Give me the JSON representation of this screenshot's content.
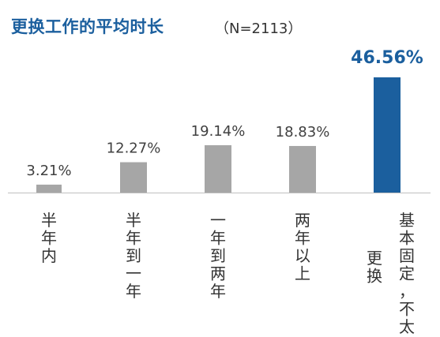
{
  "chart_data": {
    "type": "bar",
    "title": "更换工作的平均时长",
    "subtitle": "（N=2113）",
    "categories": [
      "半年内",
      "半年到一年",
      "一年到两年",
      "两年以上",
      "基本固定，不太更换"
    ],
    "values": [
      3.21,
      12.27,
      19.14,
      18.83,
      46.56
    ],
    "value_labels": [
      "3.21%",
      "12.27%",
      "19.14%",
      "18.83%",
      "46.56%"
    ],
    "ylim": [
      0,
      50
    ],
    "grid": false,
    "legend": "none",
    "colors": {
      "bar": "#a6a6a6",
      "highlight_bar": "#1b5f9e",
      "label": "#404040",
      "highlight_label": "#1b5f9e",
      "title": "#1b5f9e",
      "baseline": "#bfbfbf"
    },
    "highlight_index": 4
  }
}
